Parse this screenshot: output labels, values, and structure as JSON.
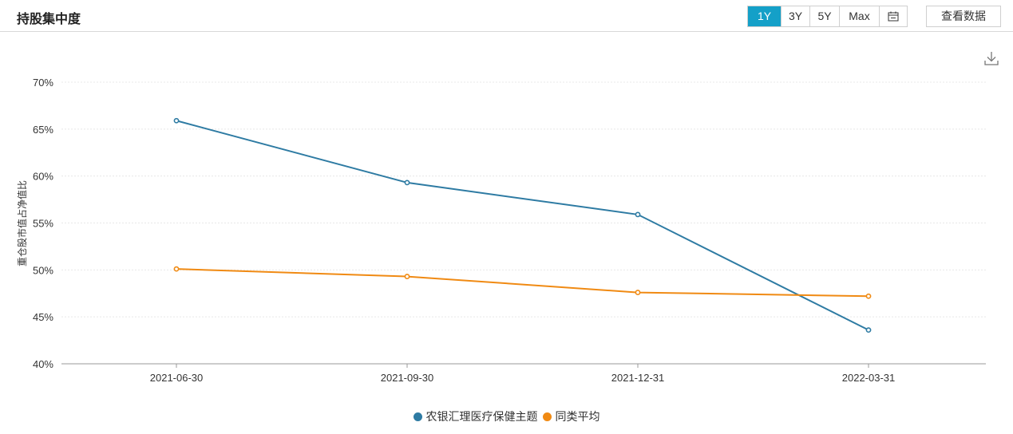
{
  "header": {
    "title": "持股集中度",
    "ranges": [
      "1Y",
      "3Y",
      "5Y",
      "Max"
    ],
    "active_range": "1Y",
    "calendar_icon": "calendar-icon",
    "view_data_label": "查看数据",
    "download_icon": "download-icon"
  },
  "chart_data": {
    "type": "line",
    "title": "",
    "xlabel": "",
    "ylabel": "重仓股市值占净值比",
    "categories": [
      "2021-06-30",
      "2021-09-30",
      "2021-12-31",
      "2022-03-31"
    ],
    "y_ticks": [
      "40%",
      "45%",
      "50%",
      "55%",
      "60%",
      "65%",
      "70%"
    ],
    "ylim": [
      40,
      70
    ],
    "grid": true,
    "legend_position": "bottom",
    "series": [
      {
        "name": "农银汇理医疗保健主题",
        "color": "#2e7ba3",
        "values": [
          65.9,
          59.3,
          55.9,
          43.6
        ]
      },
      {
        "name": "同类平均",
        "color": "#f08a13",
        "values": [
          50.1,
          49.3,
          47.6,
          47.2
        ]
      }
    ]
  }
}
